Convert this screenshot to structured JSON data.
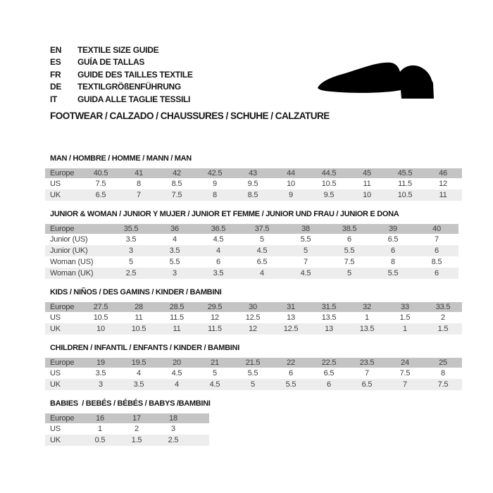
{
  "languages": [
    {
      "code": "EN",
      "label": "TEXTILE SIZE GUIDE"
    },
    {
      "code": "ES",
      "label": "GUÍA DE TALLAS"
    },
    {
      "code": "FR",
      "label": "GUIDE DES TAILLES TEXTILE"
    },
    {
      "code": "DE",
      "label": "TEXTILGRÖßENFÜHRUNG"
    },
    {
      "code": "IT",
      "label": "GUIDA ALLE TAGLIE TESSILI"
    }
  ],
  "category_heading": "FOOTWEAR / CALZADO / CHAUSSURES / SCHUHE / CALZATURE",
  "icons": {
    "shoe": "shoe-silhouette"
  },
  "colors": {
    "header_row_bg": "#c4c4c4",
    "alt_row_bg": "#ededed",
    "row_bg": "#ffffff",
    "table_text": "#3d3d3d",
    "title_text": "#161616",
    "icon": "#000000"
  },
  "tables": [
    {
      "title": "MAN / HOMBRE / HOMME / MANN / MAN",
      "rows": [
        {
          "label": "Europe",
          "values": [
            "40.5",
            "41",
            "42",
            "42.5",
            "43",
            "44",
            "44.5",
            "45",
            "45.5",
            "46"
          ]
        },
        {
          "label": "US",
          "values": [
            "7.5",
            "8",
            "8.5",
            "9",
            "9.5",
            "10",
            "10.5",
            "11",
            "11.5",
            "12"
          ]
        },
        {
          "label": "UK",
          "values": [
            "6.5",
            "7",
            "7.5",
            "8",
            "8.5",
            "9",
            "9.5",
            "10",
            "10.5",
            "11"
          ]
        }
      ]
    },
    {
      "title": "JUNIOR & WOMAN / JUNIOR Y MUJER / JUNIOR ET FEMME / JUNIOR UND FRAU / JUNIOR E DONA",
      "rows": [
        {
          "label": "Europe",
          "values": [
            "35.5",
            "36",
            "36.5",
            "37.5",
            "38",
            "38.5",
            "39",
            "40"
          ]
        },
        {
          "label": "Junior (US)",
          "values": [
            "3.5",
            "4",
            "4.5",
            "5",
            "5.5",
            "6",
            "6.5",
            "7"
          ]
        },
        {
          "label": "Junior (UK)",
          "values": [
            "3",
            "3.5",
            "4",
            "4.5",
            "5",
            "5.5",
            "6",
            "6"
          ]
        },
        {
          "label": "Woman (US)",
          "values": [
            "5",
            "5.5",
            "6",
            "6.5",
            "7",
            "7.5",
            "8",
            "8.5"
          ]
        },
        {
          "label": "Woman (UK)",
          "values": [
            "2.5",
            "3",
            "3.5",
            "4",
            "4.5",
            "5",
            "5.5",
            "6"
          ]
        }
      ]
    },
    {
      "title": "KIDS / NIÑOS / DES GAMINS / KINDER / BAMBINI",
      "rows": [
        {
          "label": "Europe",
          "values": [
            "27.5",
            "28",
            "28.5",
            "29.5",
            "30",
            "31",
            "31.5",
            "32",
            "33",
            "33.5"
          ]
        },
        {
          "label": "US",
          "values": [
            "10.5",
            "11",
            "11.5",
            "12",
            "12.5",
            "13",
            "13.5",
            "1",
            "1.5",
            "2"
          ]
        },
        {
          "label": "UK",
          "values": [
            "10",
            "10.5",
            "11",
            "11.5",
            "12",
            "12.5",
            "13",
            "13.5",
            "1",
            "1.5"
          ]
        }
      ]
    },
    {
      "title": "CHILDREN / INFANTIL / ENFANTS / KINDER / BAMBINI",
      "rows": [
        {
          "label": "Europe",
          "values": [
            "19",
            "19.5",
            "20",
            "21",
            "21.5",
            "22",
            "22.5",
            "23.5",
            "24",
            "25"
          ]
        },
        {
          "label": "US",
          "values": [
            "3.5",
            "4",
            "4.5",
            "5",
            "5.5",
            "6",
            "6.5",
            "7",
            "7.5",
            "8"
          ]
        },
        {
          "label": "UK",
          "values": [
            "3",
            "3.5",
            "4",
            "4.5",
            "5",
            "5.5",
            "6",
            "6.5",
            "7",
            "7.5"
          ]
        }
      ]
    },
    {
      "title": "BABIES  / BEBÉS / BÉBÉS / BABYS /BAMBINI",
      "rows": [
        {
          "label": "Europe",
          "values": [
            "16",
            "17",
            "18"
          ]
        },
        {
          "label": "US",
          "values": [
            "1",
            "2",
            "3"
          ]
        },
        {
          "label": "UK",
          "values": [
            "0.5",
            "1.5",
            "2.5"
          ]
        }
      ]
    }
  ]
}
